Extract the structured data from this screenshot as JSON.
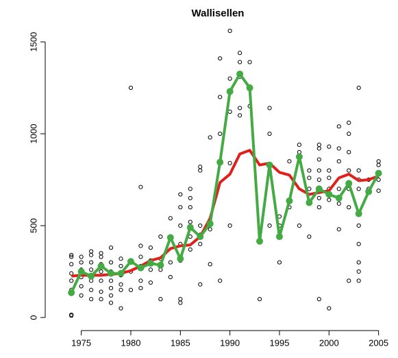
{
  "chart_data": {
    "type": "line",
    "title": "Wallisellen",
    "x": [
      1974,
      1975,
      1976,
      1977,
      1978,
      1979,
      1980,
      1981,
      1982,
      1983,
      1984,
      1985,
      1986,
      1987,
      1988,
      1989,
      1990,
      1991,
      1992,
      1993,
      1994,
      1995,
      1996,
      1997,
      1998,
      1999,
      2000,
      2001,
      2002,
      2003,
      2004,
      2005
    ],
    "xlim": [
      1971.5,
      2006.2
    ],
    "xticks": [
      1975,
      1980,
      1985,
      1990,
      1995,
      2000,
      2005
    ],
    "ylim": [
      -45,
      1560
    ],
    "yticks": [
      0,
      500,
      1000,
      1500
    ],
    "points": {
      "color": "#000000",
      "x": [
        1974,
        1974,
        1974,
        1974,
        1974,
        1974,
        1974,
        1974,
        1974,
        1975,
        1975,
        1975,
        1975,
        1975,
        1975,
        1976,
        1976,
        1976,
        1976,
        1976,
        1976,
        1976,
        1977,
        1977,
        1977,
        1977,
        1977,
        1977,
        1977,
        1978,
        1978,
        1978,
        1978,
        1978,
        1978,
        1978,
        1979,
        1979,
        1979,
        1979,
        1979,
        1979,
        1980,
        1980,
        1980,
        1980,
        1981,
        1981,
        1981,
        1981,
        1981,
        1981,
        1982,
        1982,
        1982,
        1982,
        1983,
        1983,
        1983,
        1983,
        1984,
        1984,
        1984,
        1984,
        1985,
        1985,
        1985,
        1985,
        1985,
        1985,
        1985,
        1986,
        1986,
        1986,
        1986,
        1986,
        1986,
        1987,
        1987,
        1987,
        1987,
        1987,
        1987,
        1988,
        1988,
        1988,
        1988,
        1989,
        1989,
        1989,
        1989,
        1989,
        1990,
        1990,
        1990,
        1990,
        1990,
        1991,
        1991,
        1991,
        1991,
        1991,
        1992,
        1992,
        1992,
        1993,
        1993,
        1994,
        1994,
        1994,
        1994,
        1995,
        1995,
        1995,
        1996,
        1996,
        1996,
        1997,
        1997,
        1997,
        1998,
        1998,
        1998,
        1998,
        1999,
        1999,
        1999,
        1999,
        1999,
        1999,
        1999,
        1999,
        1999,
        2000,
        2000,
        2000,
        2000,
        2000,
        2000,
        2001,
        2001,
        2001,
        2001,
        2001,
        2001,
        2002,
        2002,
        2002,
        2002,
        2002,
        2002,
        2002,
        2003,
        2003,
        2003,
        2003,
        2003,
        2003,
        2003,
        2003,
        2003,
        2004,
        2004,
        2005,
        2005,
        2005,
        2005
      ],
      "values": [
        10,
        15,
        130,
        150,
        200,
        240,
        290,
        330,
        340,
        120,
        170,
        220,
        260,
        300,
        330,
        100,
        150,
        200,
        260,
        300,
        340,
        360,
        100,
        140,
        200,
        250,
        290,
        330,
        350,
        80,
        120,
        160,
        200,
        250,
        300,
        380,
        50,
        150,
        180,
        230,
        280,
        320,
        150,
        250,
        310,
        1250,
        160,
        200,
        280,
        330,
        390,
        710,
        190,
        260,
        310,
        380,
        100,
        260,
        320,
        440,
        220,
        300,
        430,
        540,
        80,
        100,
        310,
        400,
        500,
        600,
        670,
        370,
        440,
        520,
        600,
        650,
        700,
        180,
        400,
        450,
        500,
        800,
        820,
        290,
        480,
        520,
        980,
        200,
        840,
        1000,
        1200,
        1410,
        500,
        840,
        1120,
        1300,
        1560,
        1100,
        1140,
        1310,
        1390,
        1440,
        1150,
        1250,
        1390,
        100,
        420,
        500,
        800,
        1000,
        1140,
        300,
        500,
        550,
        600,
        640,
        850,
        500,
        900,
        940,
        440,
        700,
        760,
        800,
        100,
        600,
        650,
        700,
        750,
        800,
        860,
        920,
        940,
        50,
        640,
        700,
        760,
        800,
        930,
        480,
        620,
        700,
        850,
        920,
        1040,
        200,
        600,
        700,
        800,
        900,
        1000,
        1060,
        200,
        250,
        300,
        400,
        500,
        700,
        750,
        800,
        1250,
        700,
        750,
        690,
        750,
        830,
        850
      ]
    },
    "series": [
      {
        "color": "#e0201b",
        "markers": false,
        "values": [
          225,
          230,
          230,
          230,
          235,
          240,
          255,
          280,
          310,
          325,
          375,
          390,
          395,
          440,
          540,
          735,
          780,
          890,
          910,
          830,
          840,
          790,
          775,
          700,
          670,
          680,
          690,
          760,
          780,
          745,
          750,
          770
        ]
      },
      {
        "color": "#44aa44",
        "markers": true,
        "values": [
          135,
          250,
          225,
          280,
          240,
          240,
          305,
          270,
          295,
          285,
          435,
          320,
          490,
          440,
          510,
          845,
          1230,
          1325,
          1250,
          415,
          830,
          440,
          635,
          875,
          625,
          700,
          670,
          650,
          730,
          565,
          685,
          785
        ]
      }
    ]
  }
}
